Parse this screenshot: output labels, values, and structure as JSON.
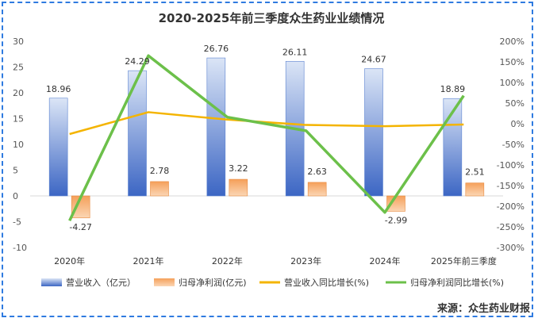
{
  "chart_data": {
    "type": "bar",
    "title": "2020-2025年前三季度众生药业业绩情况",
    "categories": [
      "2020年",
      "2021年",
      "2022年",
      "2023年",
      "2024年",
      "2025年前三季度"
    ],
    "series": [
      {
        "name": "营业收入（亿元）",
        "type": "bar",
        "axis": "left",
        "values": [
          18.96,
          24.29,
          26.76,
          26.11,
          24.67,
          18.89
        ],
        "color": "#4a72c8"
      },
      {
        "name": "归母净利润(亿元)",
        "type": "bar",
        "axis": "left",
        "values": [
          -4.27,
          2.78,
          3.22,
          2.63,
          -2.99,
          2.51
        ],
        "color": "#ef8a3c"
      },
      {
        "name": "营业收入同比增长(%)",
        "type": "line",
        "axis": "right",
        "values": [
          -25,
          28,
          10,
          -3,
          -6,
          -2
        ],
        "color": "#f4b400"
      },
      {
        "name": "归母净利润同比增长(%)",
        "type": "line",
        "axis": "right",
        "values": [
          -235,
          165,
          16,
          -17,
          -215,
          68
        ],
        "color": "#6cc04a"
      }
    ],
    "left_axis": {
      "ylim": [
        -10,
        30
      ],
      "ticks": [
        "-10",
        "-5",
        "0",
        "5",
        "10",
        "15",
        "20",
        "25",
        "30"
      ]
    },
    "right_axis": {
      "ylim": [
        -300,
        200
      ],
      "ticks": [
        "-300%",
        "-250%",
        "-200%",
        "-150%",
        "-100%",
        "-50%",
        "0%",
        "50%",
        "100%",
        "150%",
        "200%"
      ]
    },
    "bar_labels": {
      "revenue": [
        "18.96",
        "24.29",
        "26.76",
        "26.11",
        "24.67",
        "18.89"
      ],
      "profit": [
        "-4.27",
        "2.78",
        "3.22",
        "2.63",
        "-2.99",
        "2.51"
      ]
    },
    "legend_position": "bottom",
    "grid": false
  },
  "source": "来源：众生药业财报"
}
